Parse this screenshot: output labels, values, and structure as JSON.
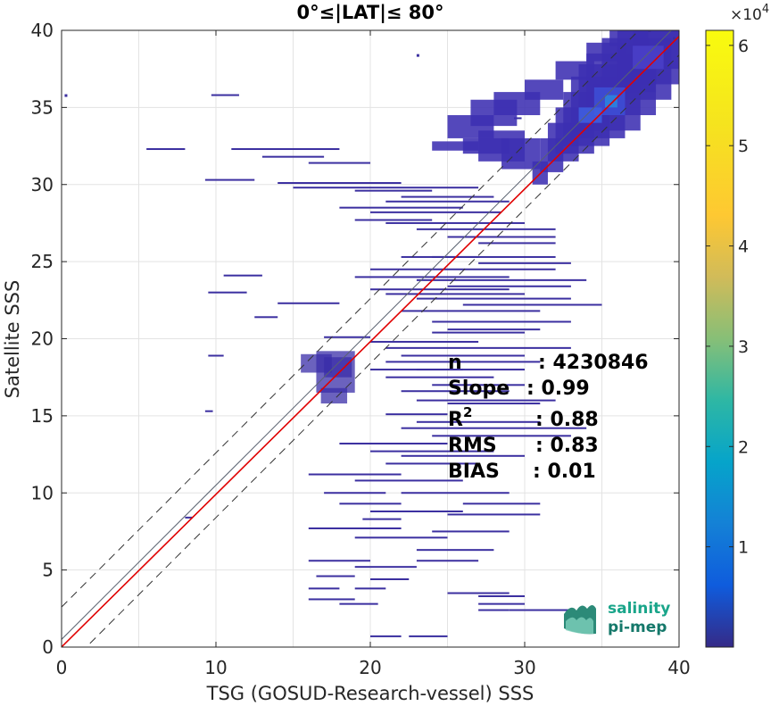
{
  "chart_data": {
    "type": "heatmap",
    "title": "0°≤|LAT|≤ 80°",
    "xlabel": "TSG (GOSUD-Research-vessel) SSS",
    "ylabel": "Satellite SSS",
    "xlim": [
      0,
      40
    ],
    "ylim": [
      0,
      40
    ],
    "x_ticks": [
      "0",
      "10",
      "20",
      "30",
      "40"
    ],
    "y_ticks": [
      "0",
      "5",
      "10",
      "15",
      "20",
      "25",
      "30",
      "35",
      "40"
    ],
    "grid": true,
    "colormap": "parula",
    "colorbar": {
      "range": [
        0,
        61500
      ],
      "multiplier_base": "×10",
      "multiplier_exp": "4",
      "ticks": [
        "1",
        "2",
        "3",
        "4",
        "5",
        "6"
      ],
      "tick_values": [
        10000,
        20000,
        30000,
        40000,
        50000,
        60000
      ]
    },
    "reference_lines": [
      {
        "kind": "one_to_one",
        "style": "solid",
        "color": "#5a6270",
        "intercept": 0.5,
        "slope": 1
      },
      {
        "kind": "regression",
        "style": "solid",
        "color": "#e00000",
        "intercept": 0.01,
        "slope": 0.99
      },
      {
        "kind": "upper_bound",
        "style": "dashed",
        "color": "#333333",
        "intercept": 2.6,
        "slope": 1
      },
      {
        "kind": "lower_bound",
        "style": "dashed",
        "color": "#333333",
        "intercept": -1.6,
        "slope": 1
      }
    ],
    "stats": [
      {
        "label": "n",
        "sup": "",
        "value": ": 4230846"
      },
      {
        "label": "Slope",
        "sup": "",
        "value": ": 0.99"
      },
      {
        "label": "R",
        "sup": "2",
        "value": ": 0.88"
      },
      {
        "label": "RMS",
        "sup": "",
        "value": ": 0.83"
      },
      {
        "label": "BIAS",
        "sup": "",
        "value": ": 0.01"
      }
    ],
    "dense_cluster": [
      [
        30.5,
        31.5,
        30,
        31.5
      ],
      [
        31,
        32.5,
        30.8,
        33
      ],
      [
        31.5,
        33.5,
        31.5,
        34
      ],
      [
        32,
        34.5,
        32,
        35
      ],
      [
        32.5,
        35.5,
        32.5,
        36
      ],
      [
        33,
        36.5,
        33,
        37
      ],
      [
        33.5,
        37.5,
        33.5,
        37.8
      ],
      [
        34,
        38.5,
        34.5,
        38.5
      ],
      [
        35,
        39.5,
        35.5,
        39.5
      ],
      [
        36,
        40,
        36.5,
        40
      ],
      [
        37,
        40,
        37.5,
        40
      ],
      [
        28.5,
        31,
        31,
        33
      ],
      [
        27,
        30,
        31.5,
        33.5
      ],
      [
        26,
        29,
        32,
        33
      ],
      [
        24,
        27,
        32.2,
        32.8
      ],
      [
        25,
        28,
        33,
        34.5
      ],
      [
        26.5,
        29.5,
        33.8,
        35.5
      ],
      [
        28,
        31,
        34.5,
        36
      ],
      [
        30,
        32.5,
        35.5,
        36.8
      ],
      [
        32,
        34.5,
        36.8,
        38
      ],
      [
        34,
        36.5,
        38,
        39.2
      ],
      [
        35.5,
        38,
        39,
        40
      ],
      [
        36,
        38.5,
        36,
        39
      ],
      [
        34.5,
        36.5,
        35,
        36.5
      ]
    ],
    "hotspots": [
      [
        34.5,
        36.5,
        34.5,
        36.3
      ],
      [
        35.2,
        36,
        35,
        35.8
      ],
      [
        33.5,
        35,
        34,
        35
      ],
      [
        37,
        39,
        37.5,
        39
      ]
    ],
    "sparse_cluster": [
      [
        16.5,
        19,
        16.5,
        19.2
      ],
      [
        17,
        18.8,
        17.5,
        18.8
      ],
      [
        15.5,
        17.5,
        17.8,
        19
      ],
      [
        16.8,
        18.5,
        15.8,
        16.8
      ]
    ],
    "horizontal_streaks": [
      [
        9.7,
        11.5,
        35.8
      ],
      [
        5.5,
        8,
        32.3
      ],
      [
        11,
        18,
        32.3
      ],
      [
        13,
        17,
        31.8
      ],
      [
        16,
        20,
        31.4
      ],
      [
        9.3,
        12.5,
        30.3
      ],
      [
        14,
        22,
        30.1
      ],
      [
        15,
        27,
        29.8
      ],
      [
        19,
        24,
        29.6
      ],
      [
        22,
        28,
        29.2
      ],
      [
        21,
        29,
        28.9
      ],
      [
        18,
        26,
        28.5
      ],
      [
        20,
        28.5,
        28.2
      ],
      [
        19,
        24,
        27.7
      ],
      [
        21,
        30,
        27.5
      ],
      [
        23,
        32,
        27.1
      ],
      [
        25,
        32,
        26.6
      ],
      [
        27,
        32,
        26.2
      ],
      [
        22,
        27,
        25.3
      ],
      [
        24,
        32,
        25.3
      ],
      [
        27,
        33,
        24.9
      ],
      [
        20,
        32,
        24.5
      ],
      [
        10.5,
        13,
        24.1
      ],
      [
        19,
        29,
        24.0
      ],
      [
        23,
        34,
        23.8
      ],
      [
        25,
        33,
        23.4
      ],
      [
        20,
        29,
        23.2
      ],
      [
        9.5,
        12,
        23.0
      ],
      [
        21,
        30,
        22.9
      ],
      [
        23,
        33,
        22.6
      ],
      [
        14,
        18,
        22.3
      ],
      [
        26,
        35,
        22.2
      ],
      [
        22,
        31,
        21.8
      ],
      [
        12.5,
        14,
        21.4
      ],
      [
        24,
        33,
        21.1
      ],
      [
        25,
        31,
        20.6
      ],
      [
        24,
        30,
        20.4
      ],
      [
        17,
        20,
        20.1
      ],
      [
        20,
        27,
        19.8
      ],
      [
        21,
        33,
        19.4
      ],
      [
        22,
        30,
        18.9
      ],
      [
        9.5,
        10.5,
        18.9
      ],
      [
        21,
        31,
        18.5
      ],
      [
        20,
        26,
        18.0
      ],
      [
        23,
        30,
        18.0
      ],
      [
        21,
        28,
        17.5
      ],
      [
        24,
        30,
        17.0
      ],
      [
        22,
        29,
        16.6
      ],
      [
        23,
        32,
        16.0
      ],
      [
        25,
        31,
        15.8
      ],
      [
        9.3,
        9.8,
        15.3
      ],
      [
        21,
        25,
        15.1
      ],
      [
        23,
        31,
        14.6
      ],
      [
        22,
        34,
        14.2
      ],
      [
        24,
        33,
        13.7
      ],
      [
        18,
        25,
        13.2
      ],
      [
        20,
        28,
        12.7
      ],
      [
        22,
        30,
        12.4
      ],
      [
        21,
        27,
        11.9
      ],
      [
        16,
        22,
        11.2
      ],
      [
        19,
        26,
        10.8
      ],
      [
        17,
        21,
        10.0
      ],
      [
        22,
        29,
        10.0
      ],
      [
        18,
        22,
        9.3
      ],
      [
        26,
        31,
        9.3
      ],
      [
        20,
        26,
        8.8
      ],
      [
        25,
        31,
        8.6
      ],
      [
        8,
        8.5,
        8.4
      ],
      [
        19.5,
        22,
        8.3
      ],
      [
        16,
        22,
        7.7
      ],
      [
        24,
        29,
        7.5
      ],
      [
        19,
        25,
        7.1
      ],
      [
        23,
        28,
        6.3
      ],
      [
        16,
        20,
        5.6
      ],
      [
        23,
        27,
        5.6
      ],
      [
        19,
        23,
        5.2
      ],
      [
        16.5,
        19,
        4.6
      ],
      [
        20,
        22.5,
        4.4
      ],
      [
        16,
        18,
        3.8
      ],
      [
        19,
        21,
        3.8
      ],
      [
        25,
        29,
        3.5
      ],
      [
        27,
        30,
        3.3
      ],
      [
        16,
        19,
        3.1
      ],
      [
        18,
        20.5,
        2.8
      ],
      [
        27,
        30,
        2.8
      ],
      [
        27,
        29,
        2.4
      ],
      [
        29,
        33,
        2.4
      ],
      [
        20,
        22,
        0.7
      ],
      [
        22.5,
        25,
        0.7
      ],
      [
        29.3,
        29.8,
        34.3
      ]
    ],
    "isolated_points": [
      [
        0.2,
        35.8
      ],
      [
        23,
        38.4
      ],
      [
        38,
        40
      ],
      [
        39.6,
        39.5
      ]
    ]
  }
}
